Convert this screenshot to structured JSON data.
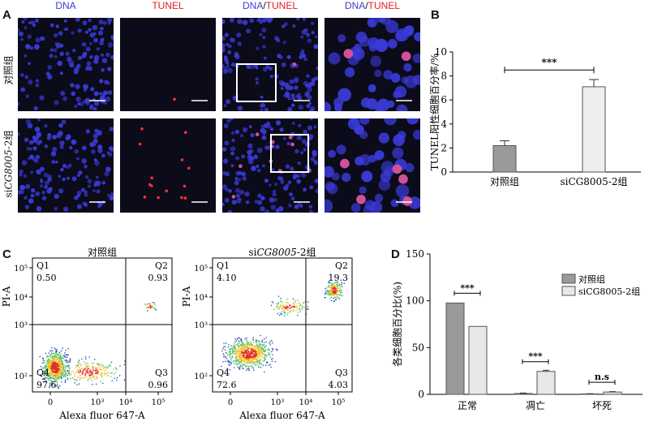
{
  "panel_labels": {
    "a": "A",
    "b": "B",
    "c": "C",
    "d": "D"
  },
  "panel_a": {
    "headers": [
      {
        "text": "DNA",
        "color": "#3b3bd0"
      },
      {
        "text": "TUNEL",
        "color": "#e02020"
      },
      {
        "text_a": "DNA",
        "sep": "/",
        "text_b": "TUNEL"
      },
      {
        "text_a": "DNA",
        "sep": "/",
        "text_b": "TUNEL"
      }
    ],
    "rows": [
      {
        "label": "对照组"
      },
      {
        "label_prefix": "si",
        "label_gene": "CG8005",
        "label_suffix": "-2组"
      }
    ]
  },
  "chart_data": [
    {
      "id": "B",
      "type": "bar",
      "categories": [
        "对照组",
        "siCG8005-2组"
      ],
      "values": [
        2.2,
        7.1
      ],
      "errors": [
        0.4,
        0.6
      ],
      "bar_colors": [
        "#9a9a9a",
        "#eeeeee"
      ],
      "ylabel": "TUNEL阳性细胞百分率/%",
      "ylim": [
        0,
        10
      ],
      "yticks": [
        0,
        2,
        4,
        6,
        8,
        10
      ],
      "significance": "***"
    },
    {
      "id": "C",
      "type": "scatter",
      "panels": [
        {
          "title": "对照组",
          "quadrants": {
            "Q1": "0.50",
            "Q2": "0.93",
            "Q3": "0.96",
            "Q4": "97.6"
          }
        },
        {
          "title_prefix": "si",
          "title_gene": "CG8005",
          "title_suffix": "-2组",
          "quadrants": {
            "Q1": "4.10",
            "Q2": "19.3",
            "Q3": "4.03",
            "Q4": "72.6"
          }
        }
      ],
      "xlabel": "Alexa fluor 647-A",
      "ylabel": "PI-A",
      "xticks": [
        "0",
        "10³",
        "10⁴",
        "10⁵"
      ],
      "yticks": [
        "10²",
        "10³",
        "10⁴",
        "10⁵"
      ],
      "quadrant_names": [
        "Q1",
        "Q2",
        "Q3",
        "Q4"
      ]
    },
    {
      "id": "D",
      "type": "bar",
      "categories": [
        "正常",
        "凋亡",
        "坏死"
      ],
      "series": [
        {
          "name": "对照组",
          "color": "#9a9a9a",
          "values": [
            97.6,
            0.9,
            0.5
          ],
          "errors": [
            0,
            0.5,
            0.2
          ]
        },
        {
          "name": "siCG8005-2组",
          "color": "#e8e8e8",
          "values": [
            72.6,
            24.5,
            2.5
          ],
          "errors": [
            0,
            1.2,
            0.4
          ]
        }
      ],
      "ylabel": "各类细胞百分比(%)",
      "ylim": [
        0,
        150
      ],
      "yticks": [
        0,
        50,
        100,
        150
      ],
      "significance": [
        "***",
        "***",
        "n.s"
      ],
      "legend_position": "top-right"
    }
  ]
}
